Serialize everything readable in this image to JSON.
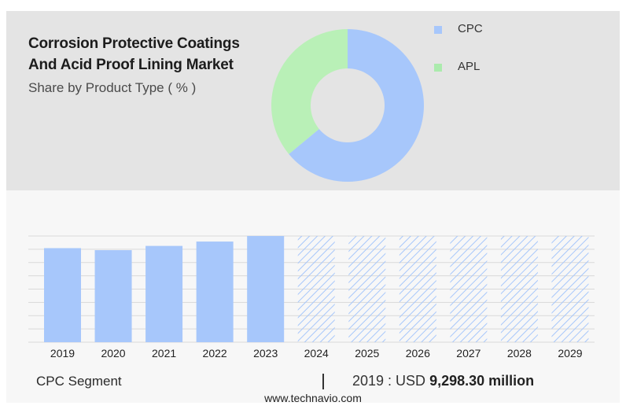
{
  "header": {
    "title_line1": "Corrosion Protective Coatings",
    "title_line2": "And Acid Proof Lining Market",
    "subtitle": "Share by Product Type ( % )"
  },
  "legend": [
    {
      "label": "CPC",
      "color": "#a7c7fb"
    },
    {
      "label": "APL",
      "color": "#abebad"
    }
  ],
  "chart_data": [
    {
      "type": "pie",
      "donut": true,
      "title": "Share by Product Type ( % )",
      "categories": [
        "CPC",
        "APL"
      ],
      "values": [
        64,
        36
      ],
      "colors": [
        "#a7c7fb",
        "#b9f0b7"
      ]
    },
    {
      "type": "bar",
      "title": "CPC Segment",
      "categories": [
        "2019",
        "2020",
        "2021",
        "2022",
        "2023",
        "2024",
        "2025",
        "2026",
        "2027",
        "2028",
        "2029"
      ],
      "values": [
        9298.3,
        9100,
        9520,
        9950,
        10500,
        10500,
        10500,
        10500,
        10500,
        10500,
        10500
      ],
      "forecast_from": "2024",
      "forecast_style": "hatched",
      "bar_color": "#a7c7fb",
      "ylim": [
        0,
        10500
      ],
      "grid": true
    }
  ],
  "footer": {
    "segment_label": "CPC Segment",
    "separator": "|",
    "year_prefix": "2019 : USD",
    "value_bold": "9,298.30 million",
    "site": "www.technavio.com"
  }
}
